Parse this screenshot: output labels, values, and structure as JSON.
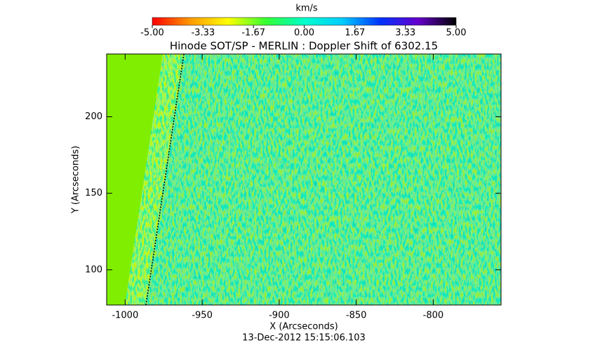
{
  "chart_data": {
    "type": "image",
    "title": "Hinode SOT/SP - MERLIN : Doppler Shift of 6302.15",
    "xlabel": "X (Arcseconds)",
    "ylabel": "Y (Arcseconds)",
    "annotation": "13-Dec-2012 15:15:06.103",
    "xlim": [
      -1012,
      -756
    ],
    "ylim": [
      77,
      241
    ],
    "xticks": [
      -1000,
      -950,
      -900,
      -850,
      -800
    ],
    "yticks": [
      100,
      150,
      200
    ],
    "colorbar": {
      "label": "km/s",
      "lim": [
        -5,
        5
      ],
      "ticks": [
        {
          "value": -5,
          "label": "-5.00"
        },
        {
          "value": -3.33,
          "label": "-3.33"
        },
        {
          "value": -1.67,
          "label": "-1.67"
        },
        {
          "value": 0,
          "label": "0.00"
        },
        {
          "value": 1.67,
          "label": "1.67"
        },
        {
          "value": 3.33,
          "label": "3.33"
        },
        {
          "value": 5,
          "label": "5.00"
        }
      ],
      "colormap": [
        "#ff0000",
        "#ff9900",
        "#ffff00",
        "#33ff33",
        "#00ffcc",
        "#00ccff",
        "#0033ff",
        "#6600cc",
        "#000000"
      ]
    }
  }
}
